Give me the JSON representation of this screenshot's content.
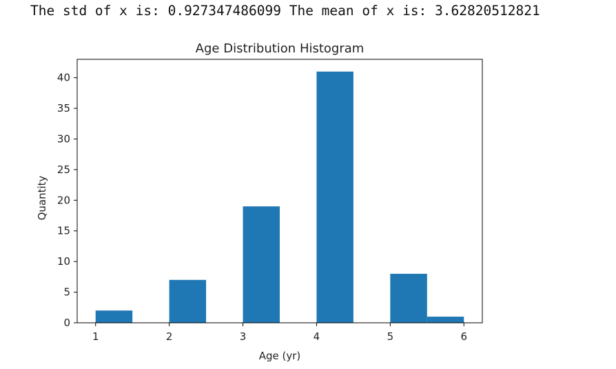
{
  "output": {
    "std_prefix": "The std of x is:",
    "std_value": "0.927347486099",
    "mean_prefix": "The mean of x is:",
    "mean_value": "3.62820512821"
  },
  "chart_data": {
    "type": "bar",
    "title": "Age Distribution Histogram",
    "xlabel": "Age (yr)",
    "ylabel": "Quantity",
    "xlim": [
      0.75,
      6.25
    ],
    "ylim": [
      0,
      43
    ],
    "xticks": [
      1,
      2,
      3,
      4,
      5,
      6
    ],
    "yticks": [
      0,
      5,
      10,
      15,
      20,
      25,
      30,
      35,
      40
    ],
    "bins": [
      {
        "start": 1.0,
        "end": 1.5,
        "value": 2
      },
      {
        "start": 1.5,
        "end": 2.0,
        "value": 0
      },
      {
        "start": 2.0,
        "end": 2.5,
        "value": 7
      },
      {
        "start": 2.5,
        "end": 3.0,
        "value": 0
      },
      {
        "start": 3.0,
        "end": 3.5,
        "value": 19
      },
      {
        "start": 3.5,
        "end": 4.0,
        "value": 0
      },
      {
        "start": 4.0,
        "end": 4.5,
        "value": 41
      },
      {
        "start": 4.5,
        "end": 5.0,
        "value": 0
      },
      {
        "start": 5.0,
        "end": 5.5,
        "value": 8
      },
      {
        "start": 5.5,
        "end": 6.0,
        "value": 1
      }
    ],
    "bar_color": "#1f77b4",
    "grid": false,
    "legend": false
  }
}
